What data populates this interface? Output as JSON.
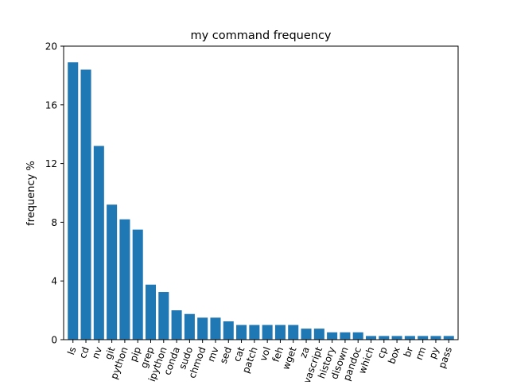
{
  "chart_data": {
    "type": "bar",
    "title": "my command frequency",
    "xlabel": "",
    "ylabel": "frequency %",
    "ylim": [
      0,
      20
    ],
    "yticks": [
      0,
      4,
      8,
      12,
      16,
      20
    ],
    "grid": false,
    "bar_color": "#1f77b4",
    "categories": [
      "ls",
      "cd",
      "nv",
      "git",
      "python",
      "pip",
      "grep",
      "ipython",
      "conda",
      "sudo",
      "chmod",
      "mv",
      "sed",
      "cat",
      "patch",
      "vol",
      "feh",
      "wget",
      "za",
      "javascript",
      "history",
      "disown",
      "pandoc",
      "which",
      "cp",
      "box",
      "br",
      "rm",
      "py",
      "pass"
    ],
    "values": [
      18.9,
      18.4,
      13.2,
      9.2,
      8.2,
      7.5,
      3.75,
      3.25,
      2.0,
      1.75,
      1.5,
      1.5,
      1.25,
      1.0,
      1.0,
      1.0,
      1.0,
      1.0,
      0.75,
      0.75,
      0.5,
      0.5,
      0.5,
      0.25,
      0.25,
      0.25,
      0.25,
      0.25,
      0.25,
      0.25
    ]
  }
}
